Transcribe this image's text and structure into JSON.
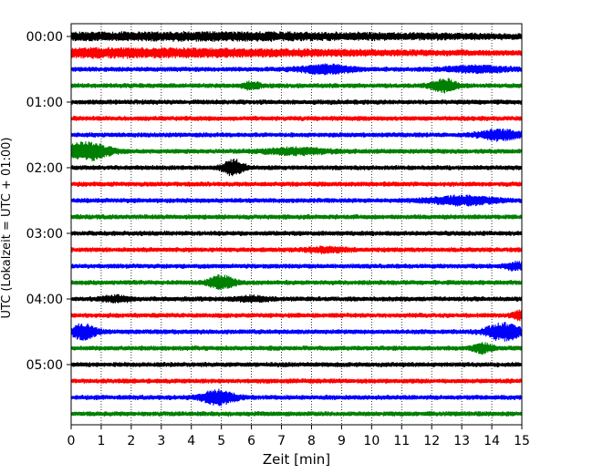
{
  "chart_data": {
    "type": "line",
    "title": "",
    "xlabel": "Zeit  [min]",
    "ylabel": "UTC (Lokalzeit = UTC + 01:00)",
    "xlim": [
      0,
      15
    ],
    "xticks": [
      0,
      1,
      2,
      3,
      4,
      5,
      6,
      7,
      8,
      9,
      10,
      11,
      12,
      13,
      14,
      15
    ],
    "xtick_labels": [
      "0",
      "1",
      "2",
      "3",
      "4",
      "5",
      "6",
      "7",
      "8",
      "9",
      "10",
      "11",
      "12",
      "13",
      "14",
      "15"
    ],
    "ytick_labels": [
      "00:00",
      "01:00",
      "02:00",
      "03:00",
      "04:00",
      "05:00"
    ],
    "grid": "vertical dotted lines at each minute",
    "colors": [
      "#000000",
      "#ff0000",
      "#0000ff",
      "#008000"
    ],
    "traces": [
      {
        "start": "00:00",
        "color": "#000000",
        "bursts": [
          [
            4.0,
            15.0,
            0.45
          ]
        ]
      },
      {
        "start": "00:15",
        "color": "#ff0000",
        "bursts": [
          [
            0.0,
            15.0,
            0.55
          ]
        ]
      },
      {
        "start": "00:30",
        "color": "#0000ff",
        "bursts": [
          [
            8.5,
            1.2,
            0.6
          ],
          [
            13.5,
            1.5,
            0.4
          ]
        ]
      },
      {
        "start": "00:45",
        "color": "#008000",
        "bursts": [
          [
            6.0,
            0.4,
            0.5
          ],
          [
            12.4,
            0.6,
            0.9
          ]
        ]
      },
      {
        "start": "01:00",
        "color": "#000000",
        "bursts": []
      },
      {
        "start": "01:15",
        "color": "#ff0000",
        "bursts": []
      },
      {
        "start": "01:30",
        "color": "#0000ff",
        "bursts": [
          [
            14.3,
            1.0,
            0.7
          ]
        ]
      },
      {
        "start": "01:45",
        "color": "#008000",
        "bursts": [
          [
            0.4,
            1.2,
            1.4
          ],
          [
            7.5,
            1.5,
            0.4
          ]
        ]
      },
      {
        "start": "02:00",
        "color": "#000000",
        "bursts": [
          [
            5.4,
            0.5,
            1.1
          ]
        ]
      },
      {
        "start": "02:15",
        "color": "#ff0000",
        "bursts": []
      },
      {
        "start": "02:30",
        "color": "#0000ff",
        "bursts": [
          [
            13.0,
            1.5,
            0.6
          ]
        ]
      },
      {
        "start": "02:45",
        "color": "#008000",
        "bursts": []
      },
      {
        "start": "03:00",
        "color": "#000000",
        "bursts": []
      },
      {
        "start": "03:15",
        "color": "#ff0000",
        "bursts": [
          [
            8.5,
            1.0,
            0.3
          ]
        ]
      },
      {
        "start": "03:30",
        "color": "#0000ff",
        "bursts": [
          [
            14.8,
            0.5,
            0.5
          ]
        ]
      },
      {
        "start": "03:45",
        "color": "#008000",
        "bursts": [
          [
            5.0,
            0.6,
            1.0
          ]
        ]
      },
      {
        "start": "04:00",
        "color": "#000000",
        "bursts": [
          [
            1.5,
            0.7,
            0.4
          ],
          [
            6.0,
            0.8,
            0.3
          ]
        ]
      },
      {
        "start": "04:15",
        "color": "#ff0000",
        "bursts": [
          [
            14.9,
            0.3,
            0.6
          ]
        ]
      },
      {
        "start": "04:30",
        "color": "#0000ff",
        "bursts": [
          [
            0.4,
            0.6,
            1.1
          ],
          [
            14.4,
            0.8,
            1.3
          ]
        ]
      },
      {
        "start": "04:45",
        "color": "#008000",
        "bursts": [
          [
            13.7,
            0.5,
            0.6
          ]
        ]
      },
      {
        "start": "05:00",
        "color": "#000000",
        "bursts": []
      },
      {
        "start": "05:15",
        "color": "#ff0000",
        "bursts": []
      },
      {
        "start": "05:30",
        "color": "#0000ff",
        "bursts": [
          [
            4.9,
            0.8,
            1.0
          ]
        ]
      },
      {
        "start": "05:45",
        "color": "#008000",
        "bursts": []
      }
    ]
  }
}
